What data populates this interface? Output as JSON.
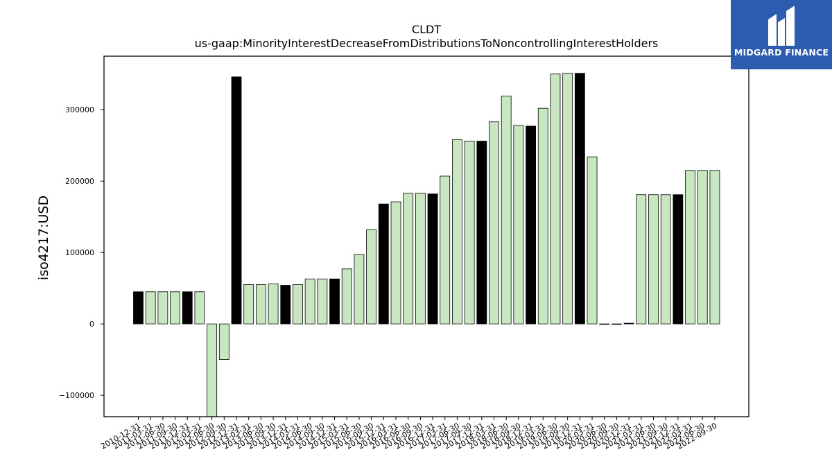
{
  "brand": {
    "name": "MIDGARD FINANCE",
    "bg_color": "#2b5caf"
  },
  "chart_data": {
    "type": "bar",
    "title": "CLDT",
    "subtitle": "us-gaap:MinorityInterestDecreaseFromDistributionsToNoncontrollingInterestHolders",
    "ylabel": "iso4217:USD",
    "xlabel": "",
    "ylim": [
      -130000,
      375000
    ],
    "yticks": [
      -100000,
      0,
      100000,
      200000,
      300000
    ],
    "grid": false,
    "colors": {
      "annual": "#000000",
      "quarterly": "#c8e6c0",
      "edge": "#000000"
    },
    "categories": [
      "2010-12-31",
      "2011-03-31",
      "2011-06-30",
      "2011-09-30",
      "2011-12-31",
      "2012-03-31",
      "2012-06-30",
      "2012-09-30",
      "2012-12-31",
      "2013-03-31",
      "2013-06-30",
      "2013-09-30",
      "2013-12-31",
      "2014-03-31",
      "2014-06-30",
      "2014-09-30",
      "2014-12-31",
      "2015-03-31",
      "2015-06-30",
      "2015-09-30",
      "2015-12-31",
      "2016-03-31",
      "2016-06-30",
      "2016-09-30",
      "2016-12-31",
      "2017-03-31",
      "2017-06-30",
      "2017-09-30",
      "2017-12-31",
      "2018-03-31",
      "2018-06-30",
      "2018-09-30",
      "2018-12-31",
      "2019-03-31",
      "2019-06-30",
      "2019-09-30",
      "2019-12-31",
      "2020-03-31",
      "2020-06-30",
      "2020-09-30",
      "2020-12-31",
      "2021-03-31",
      "2021-06-30",
      "2021-09-30",
      "2021-12-31",
      "2022-03-31",
      "2022-06-30",
      "2022-09-30"
    ],
    "xtick_labels": [
      "2010-12-31",
      "2011-03-31",
      "2011-06-30",
      "2011-09-30",
      "2011-12-31",
      "2012-03-31",
      "2012-06-30",
      "2012-09-30",
      "2012-12-31",
      "2013-03-31",
      "2013-06-30",
      "2013-09-30",
      "2013-12-31",
      "2014-03-31",
      "2014-06-30",
      "2014-09-30",
      "2014-12-31",
      "2015-03-31",
      "2015-06-30",
      "2015-09-30",
      "2015-12-31",
      "2016-03-31",
      "2016-06-30",
      "2016-09-30",
      "2016-12-31",
      "2017-03-31",
      "2017-06-30",
      "2017-09-30",
      "2017-12-31",
      "2018-03-31",
      "2018-06-30",
      "2018-09-30",
      "2018-12-31",
      "2019-03-31",
      "2019-06-30",
      "2019-09-30",
      "2019-12-31",
      "2020-03-31",
      "2020-06-30",
      "2020-09-30",
      "2020-12-31",
      "2021-03-31",
      "2021-06-30",
      "2021-09-30",
      "2021-12-31",
      "2022-03-31",
      "2022-06-30",
      "2022-09-30"
    ],
    "values": [
      45000,
      45000,
      45000,
      45000,
      45000,
      45000,
      -133000,
      -50000,
      346000,
      55000,
      55000,
      56000,
      54000,
      55000,
      63000,
      63000,
      63000,
      77000,
      97000,
      132000,
      168000,
      171000,
      183000,
      183000,
      182000,
      207000,
      258000,
      256000,
      256000,
      283000,
      319000,
      278000,
      277000,
      302000,
      350000,
      351000,
      351000,
      234000,
      0,
      0,
      1000,
      181000,
      181000,
      181000,
      181000,
      215000,
      215000,
      215000
    ],
    "annual": [
      true,
      false,
      false,
      false,
      true,
      false,
      false,
      false,
      true,
      false,
      false,
      false,
      true,
      false,
      false,
      false,
      true,
      false,
      false,
      false,
      true,
      false,
      false,
      false,
      true,
      false,
      false,
      false,
      true,
      false,
      false,
      false,
      true,
      false,
      false,
      false,
      true,
      false,
      false,
      false,
      true,
      false,
      false,
      false,
      true,
      false,
      false,
      false
    ]
  }
}
